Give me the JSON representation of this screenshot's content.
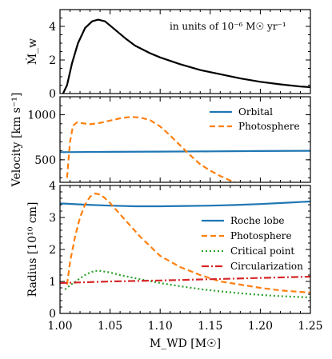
{
  "chart_data": [
    {
      "type": "line",
      "ylabel": "Ṁ_w",
      "ylim": [
        0,
        5
      ],
      "yticks": [
        0,
        2,
        4
      ],
      "xlim": [
        1.0,
        1.25
      ],
      "annotation": "in units of 10⁻⁶ M☉ yr⁻¹",
      "series": [
        {
          "color": "#000000",
          "dash": "solid",
          "x": [
            1.003,
            1.007,
            1.012,
            1.018,
            1.025,
            1.032,
            1.038,
            1.045,
            1.055,
            1.065,
            1.075,
            1.09,
            1.1,
            1.12,
            1.14,
            1.16,
            1.18,
            1.2,
            1.22,
            1.24,
            1.25
          ],
          "y": [
            0.0,
            0.5,
            1.8,
            3.0,
            3.9,
            4.3,
            4.4,
            4.3,
            3.8,
            3.3,
            2.85,
            2.4,
            2.15,
            1.75,
            1.4,
            1.15,
            0.9,
            0.7,
            0.55,
            0.42,
            0.38
          ]
        }
      ]
    },
    {
      "type": "line",
      "ylabel": "Velocity [km s⁻¹]",
      "ylim": [
        250,
        1200
      ],
      "yticks": [
        500,
        1000
      ],
      "xlim": [
        1.0,
        1.25
      ],
      "series": [
        {
          "name": "Orbital",
          "color": "#1f77b4",
          "dash": "solid",
          "x": [
            1.0,
            1.05,
            1.1,
            1.15,
            1.2,
            1.25
          ],
          "y": [
            585,
            588,
            591,
            594,
            597,
            600
          ]
        },
        {
          "name": "Photosphere",
          "color": "#ff7f0e",
          "dash": "dashed",
          "x": [
            1.007,
            1.01,
            1.013,
            1.017,
            1.02,
            1.03,
            1.04,
            1.05,
            1.06,
            1.07,
            1.08,
            1.09,
            1.1,
            1.11,
            1.12,
            1.13,
            1.14,
            1.15,
            1.16,
            1.17,
            1.175
          ],
          "y": [
            300,
            700,
            880,
            915,
            910,
            895,
            910,
            935,
            960,
            975,
            970,
            940,
            870,
            770,
            660,
            550,
            450,
            380,
            320,
            270,
            250
          ]
        }
      ]
    },
    {
      "type": "line",
      "ylabel": "Radius [10¹⁰ cm]",
      "xlabel": "M_WD [M☉]",
      "ylim": [
        0,
        4
      ],
      "yticks": [
        0,
        1,
        2,
        3,
        4
      ],
      "xlim": [
        1.0,
        1.25
      ],
      "xticks": [
        "1.00",
        "1.05",
        "1.10",
        "1.15",
        "1.20",
        "1.25"
      ],
      "series": [
        {
          "name": "Roche lobe",
          "color": "#1f77b4",
          "dash": "solid",
          "x": [
            1.0,
            1.025,
            1.05,
            1.075,
            1.1,
            1.125,
            1.15,
            1.175,
            1.2,
            1.225,
            1.25
          ],
          "y": [
            3.44,
            3.4,
            3.37,
            3.35,
            3.35,
            3.36,
            3.37,
            3.39,
            3.42,
            3.46,
            3.5
          ]
        },
        {
          "name": "Photosphere",
          "color": "#ff7f0e",
          "dash": "dashed",
          "x": [
            1.007,
            1.01,
            1.015,
            1.02,
            1.025,
            1.03,
            1.035,
            1.04,
            1.045,
            1.05,
            1.06,
            1.07,
            1.08,
            1.09,
            1.1,
            1.12,
            1.14,
            1.16,
            1.18,
            1.2,
            1.22,
            1.25
          ],
          "y": [
            0.9,
            1.6,
            2.4,
            3.0,
            3.4,
            3.65,
            3.75,
            3.72,
            3.6,
            3.45,
            3.1,
            2.75,
            2.4,
            2.1,
            1.8,
            1.45,
            1.2,
            1.0,
            0.9,
            0.8,
            0.72,
            0.65
          ]
        },
        {
          "name": "Critical point",
          "color": "#2ca02c",
          "dash": "dotted",
          "x": [
            1.005,
            1.01,
            1.015,
            1.02,
            1.025,
            1.03,
            1.035,
            1.04,
            1.05,
            1.06,
            1.08,
            1.1,
            1.12,
            1.14,
            1.16,
            1.18,
            1.2,
            1.22,
            1.25
          ],
          "y": [
            0.75,
            0.88,
            0.98,
            1.1,
            1.2,
            1.28,
            1.33,
            1.33,
            1.28,
            1.2,
            1.07,
            0.95,
            0.85,
            0.76,
            0.69,
            0.63,
            0.58,
            0.54,
            0.5
          ]
        },
        {
          "name": "Circularization",
          "color": "#d62728",
          "dash": "dashdot",
          "x": [
            1.0,
            1.05,
            1.1,
            1.15,
            1.2,
            1.25
          ],
          "y": [
            0.95,
            1.0,
            1.03,
            1.07,
            1.11,
            1.15
          ]
        }
      ]
    }
  ]
}
